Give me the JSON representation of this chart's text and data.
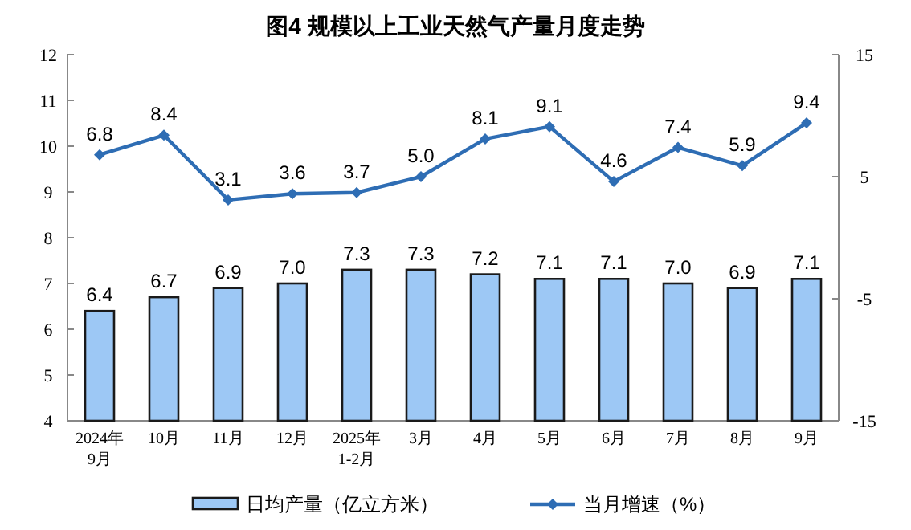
{
  "chart_data": {
    "type": "bar",
    "title": "图4  规模以上工业天然气产量月度走势",
    "categories": [
      "2024年\n9月",
      "10月",
      "11月",
      "12月",
      "2025年\n1-2月",
      "3月",
      "4月",
      "5月",
      "6月",
      "7月",
      "8月",
      "9月"
    ],
    "series": [
      {
        "name": "日均产量（亿立方米）",
        "color": "#9dc8f5",
        "values": [
          6.4,
          6.7,
          6.9,
          7.0,
          7.3,
          7.3,
          7.2,
          7.1,
          7.1,
          7.0,
          6.9,
          7.1
        ],
        "value_labels": [
          "6.4",
          "6.7",
          "6.9",
          "7.0",
          "7.3",
          "7.3",
          "7.2",
          "7.1",
          "7.1",
          "7.0",
          "6.9",
          "7.1"
        ]
      },
      {
        "name": "当月增速（%）",
        "type": "line",
        "axis": "y2",
        "color": "#2e6db4",
        "values": [
          6.8,
          8.4,
          3.1,
          3.6,
          3.7,
          5.0,
          8.1,
          9.1,
          4.6,
          7.4,
          5.9,
          9.4
        ],
        "value_labels": [
          "6.8",
          "8.4",
          "3.1",
          "3.6",
          "3.7",
          "5.0",
          "8.1",
          "9.1",
          "4.6",
          "7.4",
          "5.9",
          "9.4"
        ]
      }
    ],
    "ylim": [
      4,
      12
    ],
    "yticks": [
      4,
      5,
      6,
      7,
      8,
      9,
      10,
      11,
      12
    ],
    "y2lim": [
      -15,
      15
    ],
    "y2ticks": [
      -15,
      -5,
      5,
      15
    ],
    "legend": "bottom",
    "marker": "diamond",
    "grid": false
  }
}
